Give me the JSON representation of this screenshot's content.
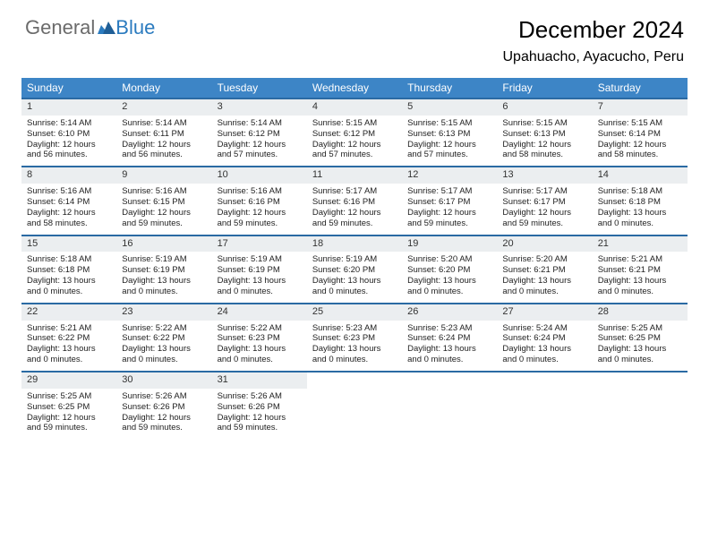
{
  "brand": {
    "part1": "General",
    "part2": "Blue"
  },
  "title": "December 2024",
  "location": "Upahuacho, Ayacucho, Peru",
  "colors": {
    "header_bg": "#3d85c6",
    "header_text": "#ffffff",
    "rule": "#2a6aa3",
    "daynum_bg": "#ebeef0",
    "brand_gray": "#6b6b6b",
    "brand_blue": "#2b7bbf"
  },
  "dow": [
    "Sunday",
    "Monday",
    "Tuesday",
    "Wednesday",
    "Thursday",
    "Friday",
    "Saturday"
  ],
  "weeks": [
    [
      {
        "n": "1",
        "sr": "Sunrise: 5:14 AM",
        "ss": "Sunset: 6:10 PM",
        "d1": "Daylight: 12 hours",
        "d2": "and 56 minutes."
      },
      {
        "n": "2",
        "sr": "Sunrise: 5:14 AM",
        "ss": "Sunset: 6:11 PM",
        "d1": "Daylight: 12 hours",
        "d2": "and 56 minutes."
      },
      {
        "n": "3",
        "sr": "Sunrise: 5:14 AM",
        "ss": "Sunset: 6:12 PM",
        "d1": "Daylight: 12 hours",
        "d2": "and 57 minutes."
      },
      {
        "n": "4",
        "sr": "Sunrise: 5:15 AM",
        "ss": "Sunset: 6:12 PM",
        "d1": "Daylight: 12 hours",
        "d2": "and 57 minutes."
      },
      {
        "n": "5",
        "sr": "Sunrise: 5:15 AM",
        "ss": "Sunset: 6:13 PM",
        "d1": "Daylight: 12 hours",
        "d2": "and 57 minutes."
      },
      {
        "n": "6",
        "sr": "Sunrise: 5:15 AM",
        "ss": "Sunset: 6:13 PM",
        "d1": "Daylight: 12 hours",
        "d2": "and 58 minutes."
      },
      {
        "n": "7",
        "sr": "Sunrise: 5:15 AM",
        "ss": "Sunset: 6:14 PM",
        "d1": "Daylight: 12 hours",
        "d2": "and 58 minutes."
      }
    ],
    [
      {
        "n": "8",
        "sr": "Sunrise: 5:16 AM",
        "ss": "Sunset: 6:14 PM",
        "d1": "Daylight: 12 hours",
        "d2": "and 58 minutes."
      },
      {
        "n": "9",
        "sr": "Sunrise: 5:16 AM",
        "ss": "Sunset: 6:15 PM",
        "d1": "Daylight: 12 hours",
        "d2": "and 59 minutes."
      },
      {
        "n": "10",
        "sr": "Sunrise: 5:16 AM",
        "ss": "Sunset: 6:16 PM",
        "d1": "Daylight: 12 hours",
        "d2": "and 59 minutes."
      },
      {
        "n": "11",
        "sr": "Sunrise: 5:17 AM",
        "ss": "Sunset: 6:16 PM",
        "d1": "Daylight: 12 hours",
        "d2": "and 59 minutes."
      },
      {
        "n": "12",
        "sr": "Sunrise: 5:17 AM",
        "ss": "Sunset: 6:17 PM",
        "d1": "Daylight: 12 hours",
        "d2": "and 59 minutes."
      },
      {
        "n": "13",
        "sr": "Sunrise: 5:17 AM",
        "ss": "Sunset: 6:17 PM",
        "d1": "Daylight: 12 hours",
        "d2": "and 59 minutes."
      },
      {
        "n": "14",
        "sr": "Sunrise: 5:18 AM",
        "ss": "Sunset: 6:18 PM",
        "d1": "Daylight: 13 hours",
        "d2": "and 0 minutes."
      }
    ],
    [
      {
        "n": "15",
        "sr": "Sunrise: 5:18 AM",
        "ss": "Sunset: 6:18 PM",
        "d1": "Daylight: 13 hours",
        "d2": "and 0 minutes."
      },
      {
        "n": "16",
        "sr": "Sunrise: 5:19 AM",
        "ss": "Sunset: 6:19 PM",
        "d1": "Daylight: 13 hours",
        "d2": "and 0 minutes."
      },
      {
        "n": "17",
        "sr": "Sunrise: 5:19 AM",
        "ss": "Sunset: 6:19 PM",
        "d1": "Daylight: 13 hours",
        "d2": "and 0 minutes."
      },
      {
        "n": "18",
        "sr": "Sunrise: 5:19 AM",
        "ss": "Sunset: 6:20 PM",
        "d1": "Daylight: 13 hours",
        "d2": "and 0 minutes."
      },
      {
        "n": "19",
        "sr": "Sunrise: 5:20 AM",
        "ss": "Sunset: 6:20 PM",
        "d1": "Daylight: 13 hours",
        "d2": "and 0 minutes."
      },
      {
        "n": "20",
        "sr": "Sunrise: 5:20 AM",
        "ss": "Sunset: 6:21 PM",
        "d1": "Daylight: 13 hours",
        "d2": "and 0 minutes."
      },
      {
        "n": "21",
        "sr": "Sunrise: 5:21 AM",
        "ss": "Sunset: 6:21 PM",
        "d1": "Daylight: 13 hours",
        "d2": "and 0 minutes."
      }
    ],
    [
      {
        "n": "22",
        "sr": "Sunrise: 5:21 AM",
        "ss": "Sunset: 6:22 PM",
        "d1": "Daylight: 13 hours",
        "d2": "and 0 minutes."
      },
      {
        "n": "23",
        "sr": "Sunrise: 5:22 AM",
        "ss": "Sunset: 6:22 PM",
        "d1": "Daylight: 13 hours",
        "d2": "and 0 minutes."
      },
      {
        "n": "24",
        "sr": "Sunrise: 5:22 AM",
        "ss": "Sunset: 6:23 PM",
        "d1": "Daylight: 13 hours",
        "d2": "and 0 minutes."
      },
      {
        "n": "25",
        "sr": "Sunrise: 5:23 AM",
        "ss": "Sunset: 6:23 PM",
        "d1": "Daylight: 13 hours",
        "d2": "and 0 minutes."
      },
      {
        "n": "26",
        "sr": "Sunrise: 5:23 AM",
        "ss": "Sunset: 6:24 PM",
        "d1": "Daylight: 13 hours",
        "d2": "and 0 minutes."
      },
      {
        "n": "27",
        "sr": "Sunrise: 5:24 AM",
        "ss": "Sunset: 6:24 PM",
        "d1": "Daylight: 13 hours",
        "d2": "and 0 minutes."
      },
      {
        "n": "28",
        "sr": "Sunrise: 5:25 AM",
        "ss": "Sunset: 6:25 PM",
        "d1": "Daylight: 13 hours",
        "d2": "and 0 minutes."
      }
    ],
    [
      {
        "n": "29",
        "sr": "Sunrise: 5:25 AM",
        "ss": "Sunset: 6:25 PM",
        "d1": "Daylight: 12 hours",
        "d2": "and 59 minutes."
      },
      {
        "n": "30",
        "sr": "Sunrise: 5:26 AM",
        "ss": "Sunset: 6:26 PM",
        "d1": "Daylight: 12 hours",
        "d2": "and 59 minutes."
      },
      {
        "n": "31",
        "sr": "Sunrise: 5:26 AM",
        "ss": "Sunset: 6:26 PM",
        "d1": "Daylight: 12 hours",
        "d2": "and 59 minutes."
      },
      {
        "empty": true
      },
      {
        "empty": true
      },
      {
        "empty": true
      },
      {
        "empty": true
      }
    ]
  ]
}
